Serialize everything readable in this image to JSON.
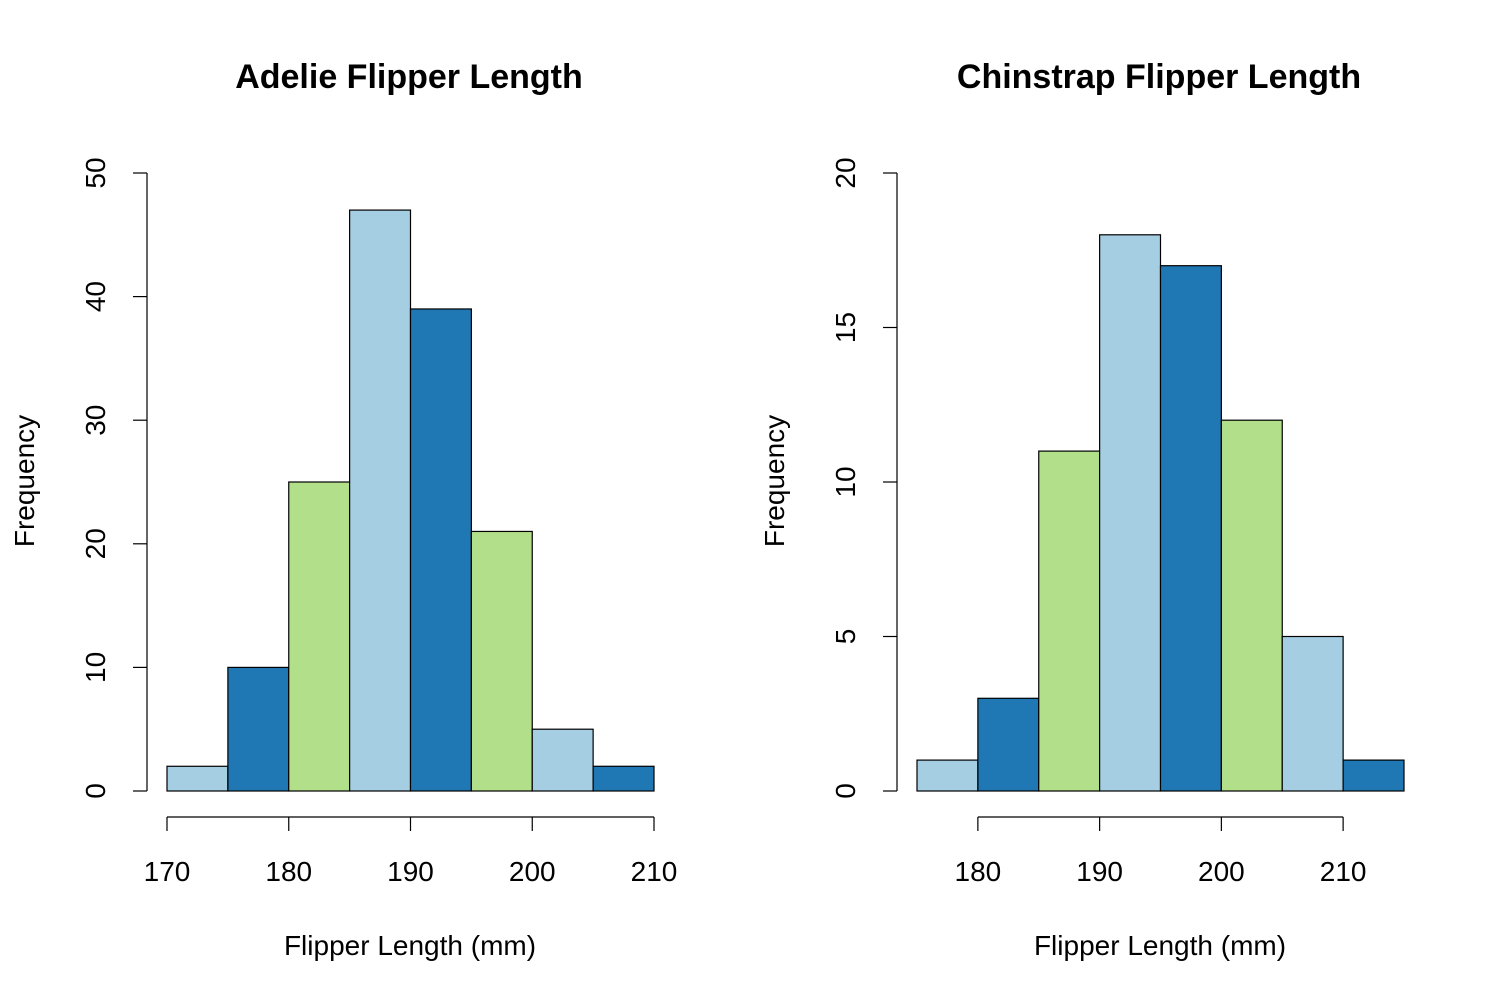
{
  "chart_data": [
    {
      "type": "bar",
      "title": "Adelie Flipper Length",
      "xlabel": "Flipper Length (mm)",
      "ylabel": "Frequency",
      "bin_edges": [
        170,
        175,
        180,
        185,
        190,
        195,
        200,
        205,
        210
      ],
      "values": [
        2,
        10,
        25,
        47,
        39,
        21,
        5,
        2
      ],
      "bar_colors": [
        "#a6cee3",
        "#1f78b4",
        "#b2df8a",
        "#a6cee3",
        "#1f78b4",
        "#b2df8a",
        "#a6cee3",
        "#1f78b4"
      ],
      "xticks": [
        170,
        180,
        190,
        200,
        210
      ],
      "yticks": [
        0,
        10,
        20,
        30,
        40,
        50
      ],
      "xlim": [
        170,
        210
      ],
      "ylim": [
        0,
        50
      ],
      "grid": false,
      "legend": "none"
    },
    {
      "type": "bar",
      "title": "Chinstrap Flipper Length",
      "xlabel": "Flipper Length (mm)",
      "ylabel": "Frequency",
      "bin_edges": [
        175,
        180,
        185,
        190,
        195,
        200,
        205,
        210,
        215
      ],
      "values": [
        1,
        3,
        11,
        18,
        17,
        12,
        5,
        1
      ],
      "bar_colors": [
        "#a6cee3",
        "#1f78b4",
        "#b2df8a",
        "#a6cee3",
        "#1f78b4",
        "#b2df8a",
        "#a6cee3",
        "#1f78b4"
      ],
      "xticks": [
        180,
        190,
        200,
        210
      ],
      "yticks": [
        0,
        5,
        10,
        15,
        20
      ],
      "xlim": [
        175,
        215
      ],
      "ylim": [
        0,
        20
      ],
      "grid": false,
      "legend": "none"
    }
  ]
}
